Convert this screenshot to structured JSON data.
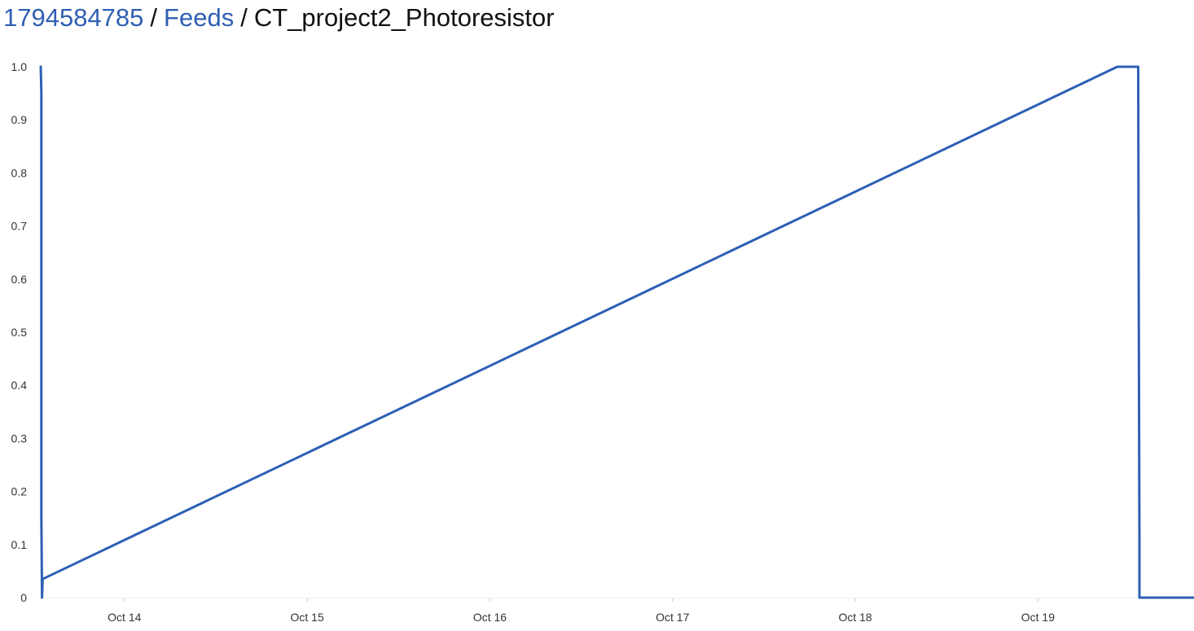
{
  "breadcrumb": {
    "items": [
      {
        "label": "1794584785",
        "link": true
      },
      {
        "label": "Feeds",
        "link": true
      },
      {
        "label": "CT_project2_Photoresistor",
        "link": false
      }
    ],
    "separator": "/"
  },
  "colors": {
    "link": "#2f5fb3",
    "series": "#2d5fb5",
    "axis_text": "#333333",
    "grid": "#eeeeee"
  },
  "chart_data": {
    "type": "line",
    "title": "",
    "xlabel": "",
    "ylabel": "",
    "ylim": [
      0,
      1.0
    ],
    "yticks": [
      0,
      0.1,
      0.2,
      0.3,
      0.4,
      0.5,
      0.6,
      0.7,
      0.8,
      0.9,
      1.0
    ],
    "ytick_labels": [
      "0",
      "0.1",
      "0.2",
      "0.3",
      "0.4",
      "0.5",
      "0.6",
      "0.7",
      "0.8",
      "0.9",
      "1.0"
    ],
    "xlim": [
      "2023-10-13 13:00",
      "2023-10-19 20:30"
    ],
    "xticks": [
      "2023-10-14 00:00",
      "2023-10-15 00:00",
      "2023-10-16 00:00",
      "2023-10-17 00:00",
      "2023-10-18 00:00",
      "2023-10-19 00:00"
    ],
    "xtick_labels": [
      "Oct 14",
      "Oct 15",
      "Oct 16",
      "Oct 17",
      "Oct 18",
      "Oct 19"
    ],
    "grid": false,
    "legend": "none",
    "series": [
      {
        "x": [
          "2023-10-13 13:00",
          "2023-10-13 13:05",
          "2023-10-13 13:05",
          "2023-10-13 13:10",
          "2023-10-13 13:15",
          "2023-10-19 10:25",
          "2023-10-19 13:10",
          "2023-10-19 13:15",
          "2023-10-19 13:20",
          "2023-10-19 13:20",
          "2023-10-19 13:25",
          "2023-10-19 20:30"
        ],
        "values": [
          1.0,
          0.95,
          0.15,
          0.0,
          0.035,
          1.0,
          1.0,
          0.53,
          0.11,
          0.0,
          0.0,
          0.0
        ]
      }
    ]
  }
}
